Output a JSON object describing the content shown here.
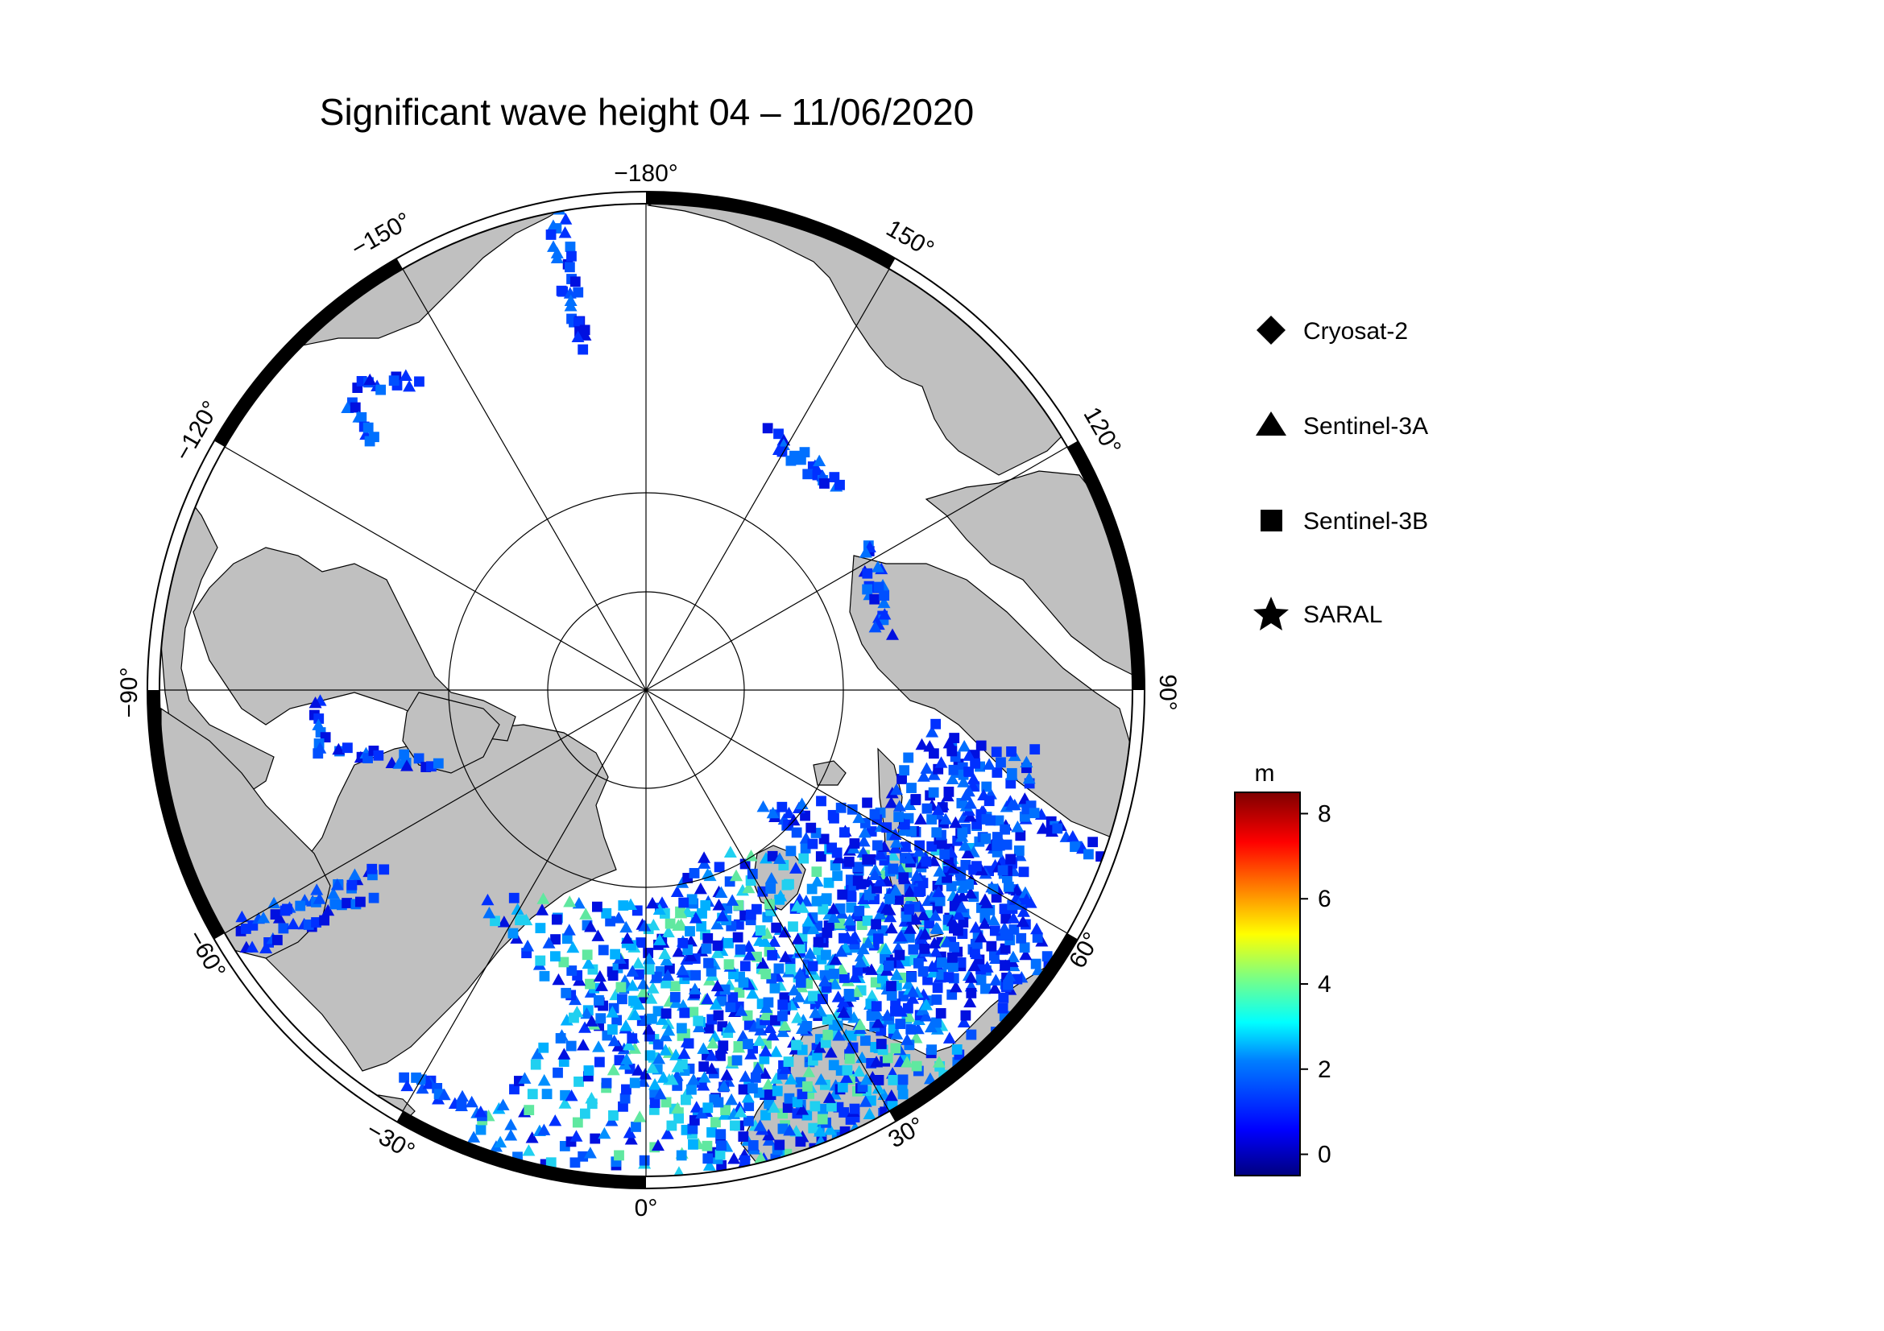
{
  "title": "Significant wave height 04 – 11/06/2020",
  "map": {
    "projection": "north-polar-stereographic",
    "longitude_labels": [
      "−180°",
      "150°",
      "120°",
      "90°",
      "60°",
      "30°",
      "0°",
      "−30°",
      "−60°",
      "−90°",
      "−120°",
      "−150°"
    ],
    "land_color": "#c0c0c0",
    "ocean_color": "#ffffff"
  },
  "legend": {
    "items": [
      {
        "label": "Cryosat-2",
        "icon": "diamond-icon"
      },
      {
        "label": "Sentinel-3A",
        "icon": "triangle-icon"
      },
      {
        "label": "Sentinel-3B",
        "icon": "square-icon"
      },
      {
        "label": "SARAL",
        "icon": "star-icon"
      }
    ]
  },
  "colorbar": {
    "unit": "m",
    "ticks": [
      "0",
      "2",
      "4",
      "6",
      "8"
    ],
    "range": [
      -0.5,
      8.5
    ],
    "colormap": [
      "#00007f",
      "#0000ff",
      "#007fff",
      "#00ffff",
      "#7fff7f",
      "#ffff00",
      "#ff7f00",
      "#ff0000",
      "#7f0000"
    ]
  }
}
